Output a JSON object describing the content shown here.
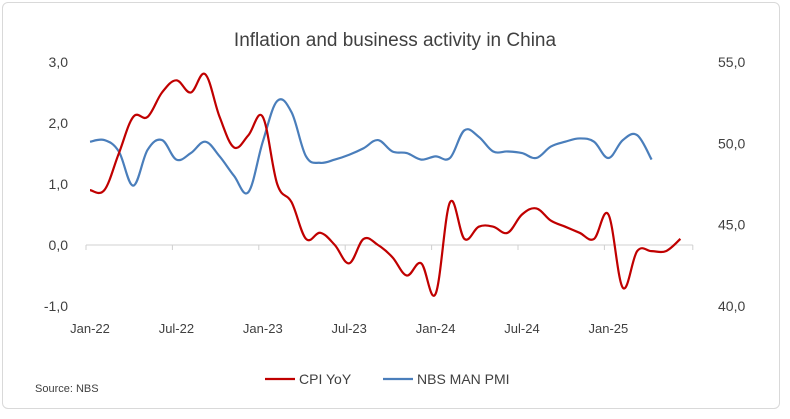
{
  "chart_data": {
    "type": "line",
    "title": "Inflation and business activity in China",
    "source": "Source: NBS",
    "x_tick_labels": [
      "Jan-22",
      "Jul-22",
      "Jan-23",
      "Jul-23",
      "Jan-24",
      "Jul-24",
      "Jan-25"
    ],
    "y_left": {
      "ticks": [
        "-1,0",
        "0,0",
        "1,0",
        "2,0",
        "3,0"
      ],
      "range": [
        -1,
        3
      ]
    },
    "y_right": {
      "ticks": [
        "40,0",
        "45,0",
        "50,0",
        "55,0"
      ],
      "range": [
        40,
        55
      ]
    },
    "series": [
      {
        "name": "CPI YoY",
        "axis": "left",
        "color": "#c00000",
        "start": "Jan-22",
        "values": [
          0.9,
          0.9,
          1.5,
          2.1,
          2.1,
          2.5,
          2.7,
          2.5,
          2.8,
          2.1,
          1.6,
          1.8,
          2.1,
          1.0,
          0.7,
          0.1,
          0.2,
          0.0,
          -0.3,
          0.1,
          0.0,
          -0.2,
          -0.5,
          -0.3,
          -0.8,
          0.7,
          0.1,
          0.3,
          0.3,
          0.2,
          0.5,
          0.6,
          0.4,
          0.3,
          0.2,
          0.1,
          0.5,
          -0.7,
          -0.1,
          -0.1,
          -0.1,
          0.1
        ]
      },
      {
        "name": "NBS MAN PMI",
        "axis": "right",
        "color": "#4a7ebb",
        "start": "Jan-22",
        "values": [
          50.1,
          50.2,
          49.5,
          47.4,
          49.6,
          50.2,
          49.0,
          49.4,
          50.1,
          49.2,
          48.0,
          47.0,
          50.1,
          52.6,
          51.9,
          49.2,
          48.8,
          49.0,
          49.3,
          49.7,
          50.2,
          49.5,
          49.4,
          49.0,
          49.2,
          49.1,
          50.8,
          50.4,
          49.5,
          49.5,
          49.4,
          49.1,
          49.8,
          50.1,
          50.3,
          50.1,
          49.1,
          50.2,
          50.5,
          49.0
        ]
      }
    ],
    "legend": "bottom",
    "grid": false
  }
}
